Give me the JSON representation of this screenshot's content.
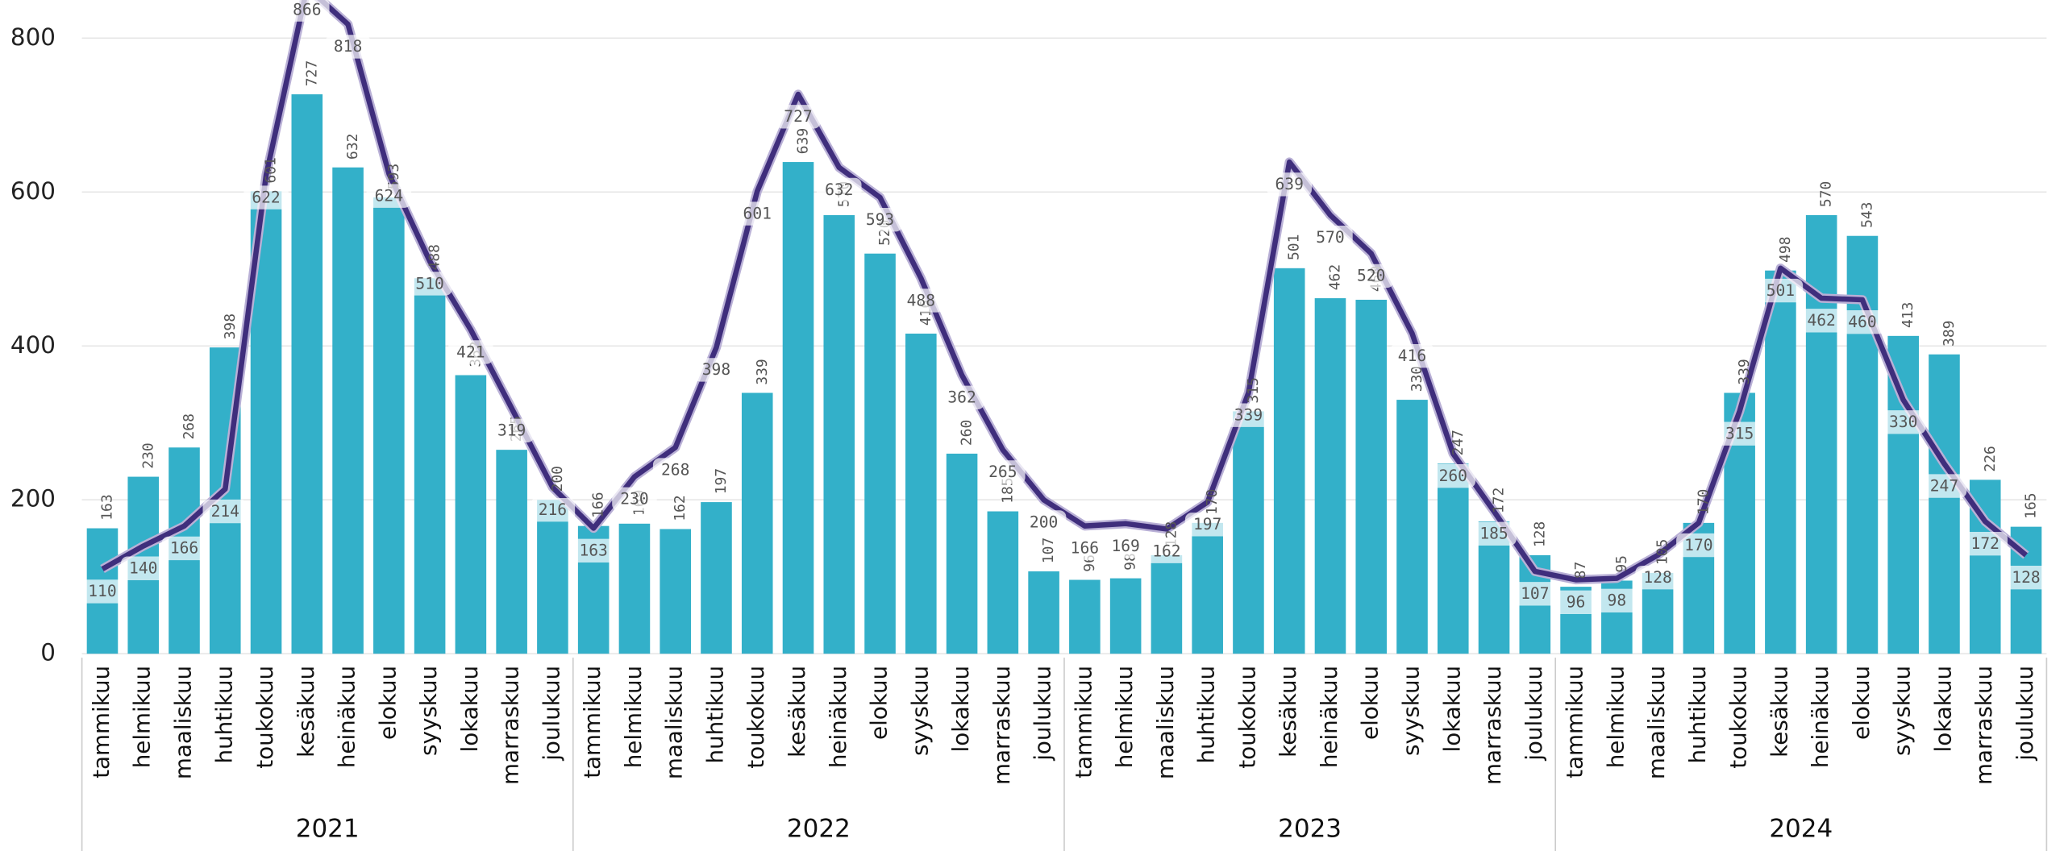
{
  "chart_data": {
    "type": "combo",
    "categories": [
      "tammikuu",
      "helmikuu",
      "maaliskuu",
      "huhtikuu",
      "toukokuu",
      "kesäkuu",
      "heinäkuu",
      "elokuu",
      "syyskuu",
      "lokakuu",
      "marraskuu",
      "joulukuu",
      "tammikuu",
      "helmikuu",
      "maaliskuu",
      "huhtikuu",
      "toukokuu",
      "kesäkuu",
      "heinäkuu",
      "elokuu",
      "syyskuu",
      "lokakuu",
      "marraskuu",
      "joulukuu",
      "tammikuu",
      "helmikuu",
      "maaliskuu",
      "huhtikuu",
      "toukokuu",
      "kesäkuu",
      "heinäkuu",
      "elokuu",
      "syyskuu",
      "lokakuu",
      "marraskuu",
      "joulukuu",
      "tammikuu",
      "helmikuu",
      "maaliskuu",
      "huhtikuu",
      "toukokuu",
      "kesäkuu",
      "heinäkuu",
      "elokuu",
      "syyskuu",
      "lokakuu",
      "marraskuu",
      "joulukuu"
    ],
    "groups": [
      "2021",
      "2022",
      "2023",
      "2024"
    ],
    "ylim": [
      0,
      850
    ],
    "yticks": [
      0,
      200,
      400,
      600,
      800
    ],
    "grid": true,
    "series": [
      {
        "type": "bar",
        "color": "#33b0c9",
        "values": [
          163,
          230,
          268,
          398,
          601,
          727,
          632,
          593,
          488,
          362,
          265,
          200,
          166,
          169,
          162,
          197,
          339,
          639,
          570,
          520,
          416,
          260,
          185,
          107,
          96,
          98,
          128,
          170,
          315,
          501,
          462,
          460,
          330,
          247,
          172,
          128,
          87,
          95,
          105,
          170,
          339,
          498,
          570,
          543,
          413,
          389,
          226,
          165
        ]
      },
      {
        "type": "line",
        "color": "#3f2e7c",
        "halo": "#b9b0d6",
        "values": [
          110,
          140,
          166,
          214,
          622,
          866,
          818,
          624,
          510,
          421,
          319,
          216,
          163,
          230,
          268,
          398,
          601,
          727,
          632,
          593,
          488,
          362,
          265,
          200,
          166,
          169,
          162,
          197,
          339,
          639,
          570,
          520,
          416,
          260,
          185,
          107,
          96,
          98,
          128,
          170,
          315,
          501,
          462,
          460,
          330,
          247,
          172,
          128
        ]
      }
    ]
  }
}
